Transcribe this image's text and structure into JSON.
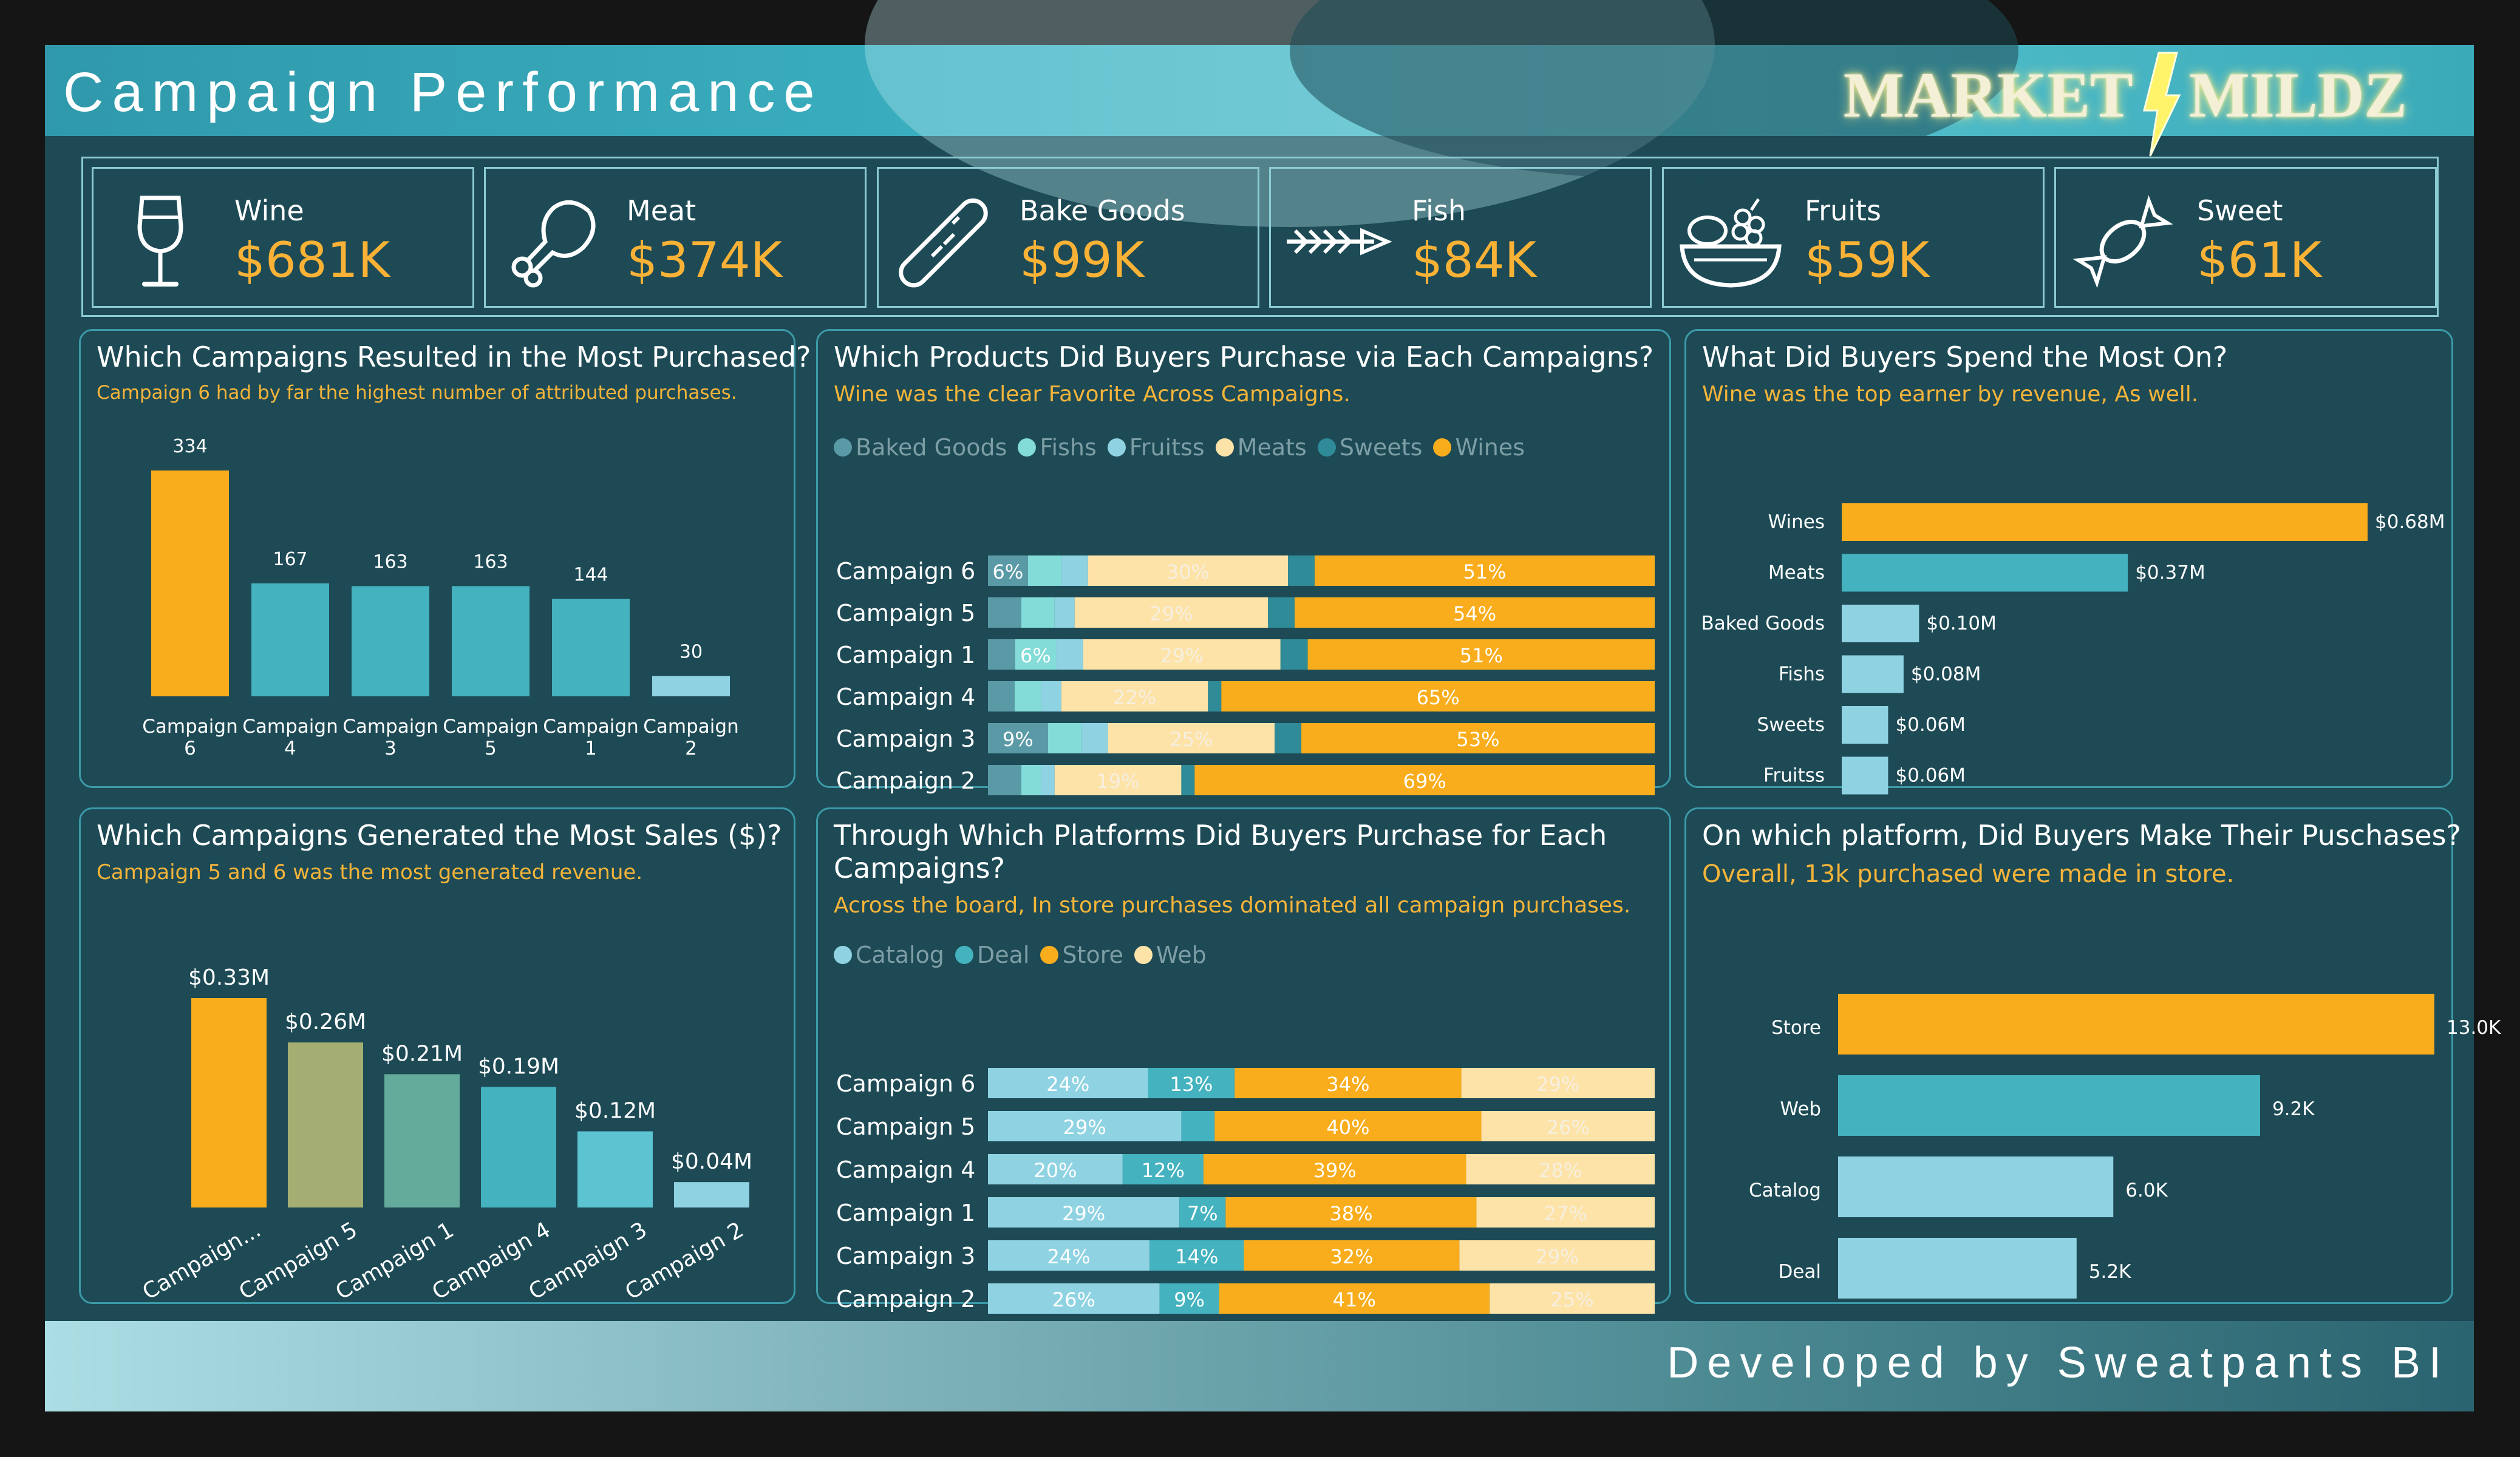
{
  "header": {
    "title": "Campaign Performance",
    "logo_left": "MARKET",
    "logo_right": "MILDZ"
  },
  "kpis": [
    {
      "label": "Wine",
      "value": "$681K",
      "icon": "wine-glass-icon"
    },
    {
      "label": "Meat",
      "value": "$374K",
      "icon": "drumstick-icon"
    },
    {
      "label": "Bake Goods",
      "value": "$99K",
      "icon": "baguette-icon"
    },
    {
      "label": "Fish",
      "value": "$84K",
      "icon": "fish-bone-icon"
    },
    {
      "label": "Fruits",
      "value": "$59K",
      "icon": "fruit-bowl-icon"
    },
    {
      "label": "Sweet",
      "value": "$61K",
      "icon": "candy-icon"
    }
  ],
  "panels": {
    "purchases": {
      "title": "Which Campaigns Resulted in the Most Purchased?",
      "subtitle": "Campaign 6 had by far the highest number of attributed purchases."
    },
    "products": {
      "title": "Which Products Did Buyers Purchase via Each Campaigns?",
      "subtitle": "Wine was the clear Favorite Across Campaigns."
    },
    "spend": {
      "title": "What Did Buyers Spend the Most On?",
      "subtitle": "Wine was the top earner by revenue, As well."
    },
    "sales": {
      "title": "Which Campaigns Generated the Most Sales ($)?",
      "subtitle": "Campaign 5 and 6 was the most generated revenue."
    },
    "platforms": {
      "title_line1": "Through Which Platforms Did Buyers Purchase for Each",
      "title_line2": "Campaigns?",
      "subtitle": "Across the board, In store purchases dominated all campaign purchases."
    },
    "platform_total": {
      "title": "On which platform, Did Buyers Make Their Puschases?",
      "subtitle": "Overall, 13k purchased were made in store."
    }
  },
  "footer": {
    "text": "Developed by Sweatpants BI"
  },
  "colors": {
    "orange": "#f9ad1c",
    "teal": "#44b2bf",
    "light": "#8fd3e3",
    "background": "#1d4a55",
    "cream": "#fde3a7"
  },
  "chart_data": [
    {
      "id": "purchases",
      "type": "bar",
      "categories": [
        "Campaign 6",
        "Campaign 4",
        "Campaign 3",
        "Campaign 5",
        "Campaign 1",
        "Campaign 2"
      ],
      "values": [
        334,
        167,
        163,
        163,
        144,
        30
      ],
      "data_labels": [
        "334",
        "167",
        "163",
        "163",
        "144",
        "30"
      ],
      "colors": [
        "#f9ad1c",
        "#44b2bf",
        "#44b2bf",
        "#44b2bf",
        "#44b2bf",
        "#8fd3e3"
      ]
    },
    {
      "id": "products",
      "type": "bar",
      "orientation": "horizontal-100%-stacked",
      "categories": [
        "Campaign 6",
        "Campaign 5",
        "Campaign 1",
        "Campaign 4",
        "Campaign 3",
        "Campaign 2"
      ],
      "series": [
        {
          "name": "Baked Goods",
          "color": "#5a9aa6",
          "values": [
            6,
            5,
            4,
            4,
            9,
            5
          ]
        },
        {
          "name": "Fishs",
          "color": "#83dcd7",
          "values": [
            5,
            5,
            6,
            4,
            5,
            3
          ]
        },
        {
          "name": "Fruitss",
          "color": "#8fd3e3",
          "values": [
            4,
            3,
            4,
            3,
            4,
            2
          ]
        },
        {
          "name": "Meats",
          "color": "#fde3a7",
          "values": [
            30,
            29,
            29,
            22,
            25,
            19
          ]
        },
        {
          "name": "Sweets",
          "color": "#2e8b97",
          "values": [
            4,
            4,
            4,
            2,
            4,
            2
          ]
        },
        {
          "name": "Wines",
          "color": "#f9ad1c",
          "values": [
            51,
            54,
            51,
            65,
            53,
            69
          ]
        }
      ],
      "segment_labels": [
        [
          "6%",
          "",
          "",
          "30%",
          "",
          "51%"
        ],
        [
          "",
          "",
          "",
          "29%",
          "",
          "54%"
        ],
        [
          "",
          "6%",
          "",
          "29%",
          "",
          "51%"
        ],
        [
          "",
          "",
          "",
          "22%",
          "",
          "65%"
        ],
        [
          "9%",
          "",
          "",
          "25%",
          "",
          "53%"
        ],
        [
          "",
          "",
          "",
          "19%",
          "",
          "69%"
        ]
      ],
      "legend": "top-left"
    },
    {
      "id": "spend",
      "type": "bar",
      "orientation": "horizontal",
      "categories": [
        "Wines",
        "Meats",
        "Baked Goods",
        "Fishs",
        "Sweets",
        "Fruitss"
      ],
      "values": [
        0.68,
        0.37,
        0.1,
        0.08,
        0.06,
        0.06
      ],
      "data_labels": [
        "$0.68M",
        "$0.37M",
        "$0.10M",
        "$0.08M",
        "$0.06M",
        "$0.06M"
      ],
      "colors": [
        "#f9ad1c",
        "#44b2bf",
        "#8fd3e3",
        "#8fd3e3",
        "#8fd3e3",
        "#8fd3e3"
      ]
    },
    {
      "id": "sales",
      "type": "bar",
      "categories": [
        "Campaign...",
        "Campaign 5",
        "Campaign 1",
        "Campaign 4",
        "Campaign 3",
        "Campaign 2"
      ],
      "values": [
        0.33,
        0.26,
        0.21,
        0.19,
        0.12,
        0.04
      ],
      "data_labels": [
        "$0.33M",
        "$0.26M",
        "$0.21M",
        "$0.19M",
        "$0.12M",
        "$0.04M"
      ],
      "colors": [
        "#f9ad1c",
        "#a4ae72",
        "#64ab9c",
        "#44b2bf",
        "#5cc3d0",
        "#8fd3e3"
      ]
    },
    {
      "id": "platforms",
      "type": "bar",
      "orientation": "horizontal-100%-stacked",
      "categories": [
        "Campaign 6",
        "Campaign 5",
        "Campaign 4",
        "Campaign 1",
        "Campaign 3",
        "Campaign 2"
      ],
      "series": [
        {
          "name": "Catalog",
          "color": "#8fd3e3",
          "values": [
            24,
            29,
            20,
            29,
            24,
            26
          ]
        },
        {
          "name": "Deal",
          "color": "#44b2bf",
          "values": [
            13,
            5,
            12,
            7,
            14,
            9
          ]
        },
        {
          "name": "Store",
          "color": "#f9ad1c",
          "values": [
            34,
            40,
            39,
            38,
            32,
            41
          ]
        },
        {
          "name": "Web",
          "color": "#fde3a7",
          "values": [
            29,
            26,
            28,
            27,
            29,
            25
          ]
        }
      ],
      "segment_labels": [
        [
          "24%",
          "13%",
          "34%",
          "29%"
        ],
        [
          "29%",
          "",
          "40%",
          "26%"
        ],
        [
          "20%",
          "12%",
          "39%",
          "28%"
        ],
        [
          "29%",
          "7%",
          "38%",
          "27%"
        ],
        [
          "24%",
          "14%",
          "32%",
          "29%"
        ],
        [
          "26%",
          "9%",
          "41%",
          "25%"
        ]
      ],
      "legend": "top-left"
    },
    {
      "id": "platform_total",
      "type": "bar",
      "orientation": "horizontal",
      "categories": [
        "Store",
        "Web",
        "Catalog",
        "Deal"
      ],
      "values": [
        13.0,
        9.2,
        6.0,
        5.2
      ],
      "data_labels": [
        "13.0K",
        "9.2K",
        "6.0K",
        "5.2K"
      ],
      "colors": [
        "#f9ad1c",
        "#44b2bf",
        "#8fd3e3",
        "#8fd3e3"
      ]
    }
  ]
}
